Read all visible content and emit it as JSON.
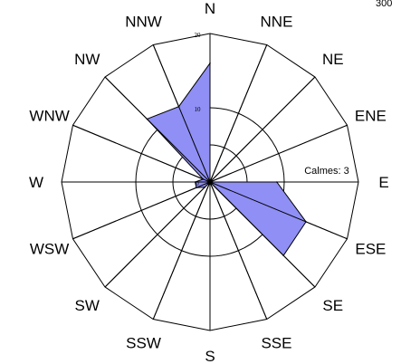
{
  "corner_label": "300",
  "chart_data": {
    "type": "radar",
    "directions": [
      "N",
      "NNE",
      "NE",
      "ENE",
      "E",
      "ESE",
      "SE",
      "SSE",
      "S",
      "SSW",
      "SW",
      "WSW",
      "W",
      "WNW",
      "NW",
      "NNW"
    ],
    "values": [
      16,
      0,
      0,
      0,
      9,
      14,
      14,
      0,
      0,
      0,
      1,
      2,
      2,
      1,
      12,
      11
    ],
    "rlim": [
      0,
      20
    ],
    "ring_ticks": [
      0,
      10,
      20
    ],
    "ring_labels": [
      "0",
      "10",
      "20"
    ],
    "calm_label": "Calmes: 3",
    "fill_color": "#8f8ff5",
    "line_color": "#000000"
  }
}
